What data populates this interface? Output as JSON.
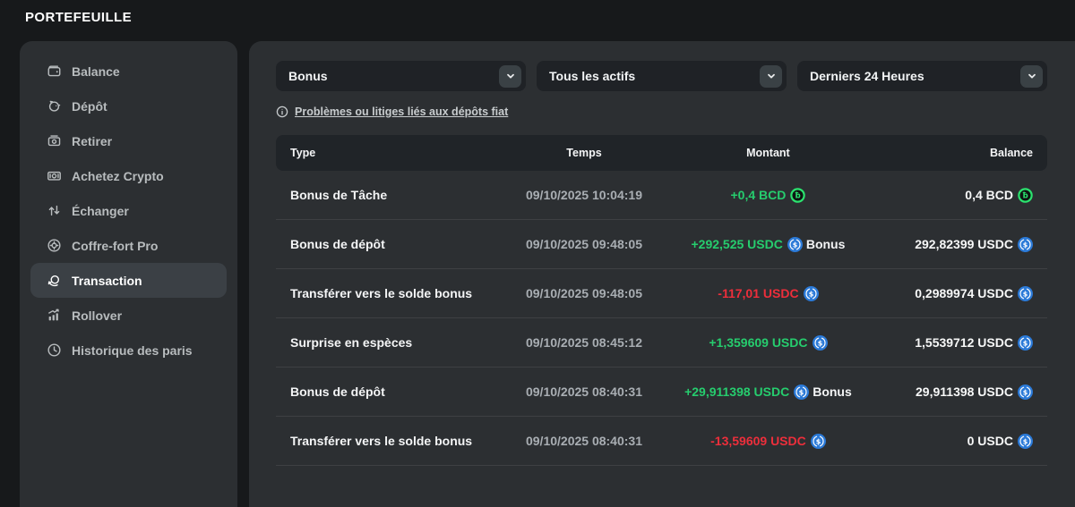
{
  "page_title": "PORTEFEUILLE",
  "sidebar": {
    "items": [
      {
        "key": "balance",
        "label": "Balance",
        "icon": "wallet-icon",
        "selected": false
      },
      {
        "key": "depot",
        "label": "Dépôt",
        "icon": "piggy-bank-icon",
        "selected": false
      },
      {
        "key": "retirer",
        "label": "Retirer",
        "icon": "withdraw-icon",
        "selected": false
      },
      {
        "key": "achetez-crypto",
        "label": "Achetez Crypto",
        "icon": "banknote-icon",
        "selected": false
      },
      {
        "key": "echanger",
        "label": "Échanger",
        "icon": "swap-arrows-icon",
        "selected": false
      },
      {
        "key": "coffre-fort-pro",
        "label": "Coffre-fort Pro",
        "icon": "vault-icon",
        "selected": false
      },
      {
        "key": "transaction",
        "label": "Transaction",
        "icon": "coin-rotate-icon",
        "selected": true
      },
      {
        "key": "rollover",
        "label": "Rollover",
        "icon": "bar-chart-icon",
        "selected": false
      },
      {
        "key": "historique-des-paris",
        "label": "Historique des paris",
        "icon": "clock-icon",
        "selected": false
      }
    ]
  },
  "filters": [
    {
      "name": "type",
      "value": "Bonus"
    },
    {
      "name": "asset",
      "value": "Tous les actifs"
    },
    {
      "name": "time",
      "value": "Derniers 24 Heures"
    }
  ],
  "help_link": {
    "label": "Problèmes ou litiges liés aux dépôts fiat"
  },
  "table": {
    "headers": [
      "Type",
      "Temps",
      "Montant",
      "Balance"
    ],
    "rows": [
      {
        "type": "Bonus de Tâche",
        "time": "09/10/2025 10:04:19",
        "amount": "+0,4 BCD",
        "direction": "positive",
        "currency": "BCD",
        "tag": "",
        "balance": "0,4 BCD",
        "balance_currency": "BCD"
      },
      {
        "type": "Bonus de dépôt",
        "time": "09/10/2025 09:48:05",
        "amount": "+292,525 USDC",
        "direction": "positive",
        "currency": "USDC",
        "tag": "Bonus",
        "balance": "292,82399 USDC",
        "balance_currency": "USDC"
      },
      {
        "type": "Transférer vers le solde bonus",
        "time": "09/10/2025 09:48:05",
        "amount": "-117,01 USDC",
        "direction": "negative",
        "currency": "USDC",
        "tag": "",
        "balance": "0,2989974 USDC",
        "balance_currency": "USDC"
      },
      {
        "type": "Surprise en espèces",
        "time": "09/10/2025 08:45:12",
        "amount": "+1,359609 USDC",
        "direction": "positive",
        "currency": "USDC",
        "tag": "",
        "balance": "1,5539712 USDC",
        "balance_currency": "USDC"
      },
      {
        "type": "Bonus de dépôt",
        "time": "09/10/2025 08:40:31",
        "amount": "+29,911398 USDC",
        "direction": "positive",
        "currency": "USDC",
        "tag": "Bonus",
        "balance": "29,911398 USDC",
        "balance_currency": "USDC"
      },
      {
        "type": "Transférer vers le solde bonus",
        "time": "09/10/2025 08:40:31",
        "amount": "-13,59609 USDC",
        "direction": "negative",
        "currency": "USDC",
        "tag": "",
        "balance": "0 USDC",
        "balance_currency": "USDC"
      }
    ]
  },
  "colors": {
    "positive": "#26cd6e",
    "negative": "#ed2e3b",
    "usdc_blue": "#2b7ad8",
    "bcd_green": "#2be26e",
    "panel_bg": "#2c2f32",
    "page_bg": "#17191b"
  }
}
